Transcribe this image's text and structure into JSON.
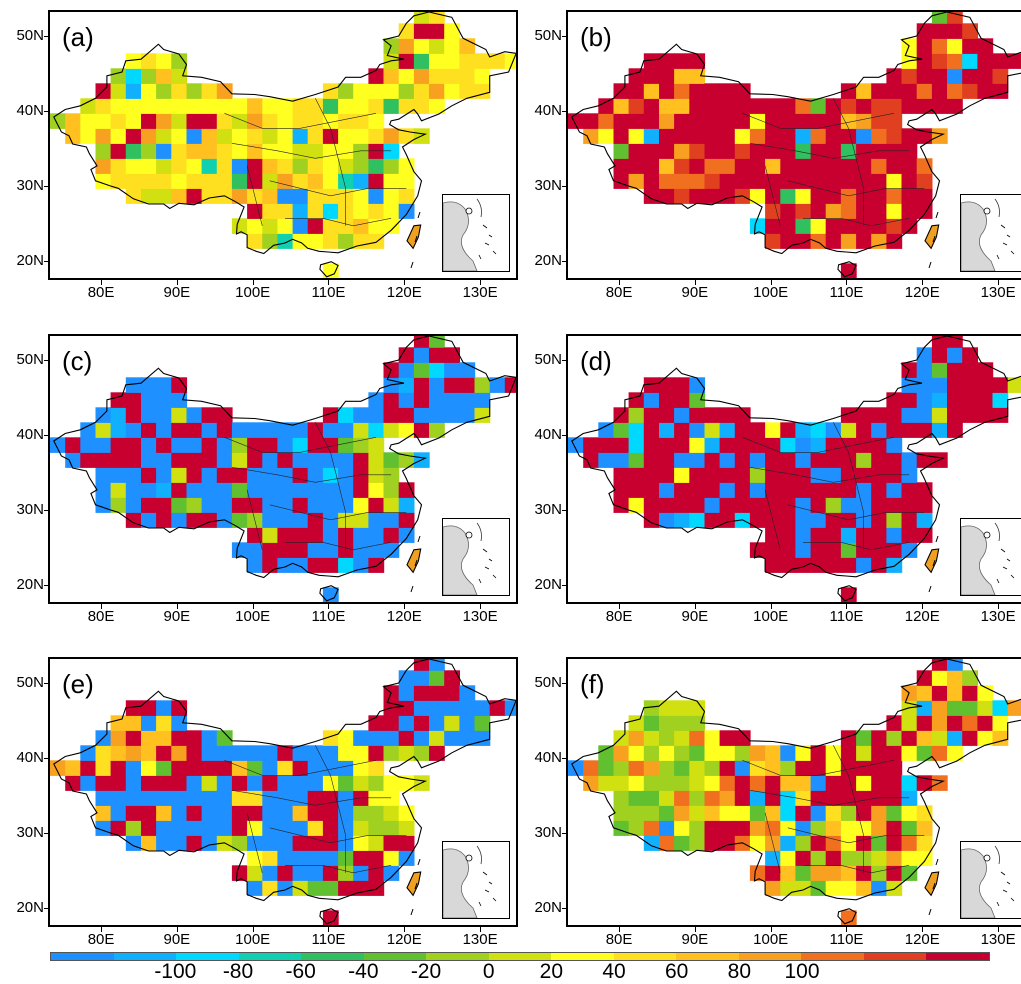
{
  "panels": [
    {
      "id": "a",
      "label": "(a)",
      "scheme": "mostly_yellow"
    },
    {
      "id": "b",
      "label": "(b)",
      "scheme": "mostly_red"
    },
    {
      "id": "c",
      "label": "(c)",
      "scheme": "blue_red_mix"
    },
    {
      "id": "d",
      "label": "(d)",
      "scheme": "mostly_red_blue_patches"
    },
    {
      "id": "e",
      "label": "(e)",
      "scheme": "blue_red_mix_green"
    },
    {
      "id": "f",
      "label": "(f)",
      "scheme": "multicolor"
    }
  ],
  "lat_labels": [
    "50N",
    "40N",
    "30N",
    "20N"
  ],
  "lon_labels": [
    "80E",
    "90E",
    "100E",
    "110E",
    "120E",
    "130E"
  ],
  "colorbar": {
    "colors": [
      "#1e90ff",
      "#10b0ff",
      "#00d8ff",
      "#10d0b0",
      "#30c060",
      "#60c030",
      "#a0d020",
      "#d0e010",
      "#ffff20",
      "#ffe020",
      "#ffc020",
      "#f8a020",
      "#f07020",
      "#e04020",
      "#c80030"
    ],
    "tick_labels": [
      "-100",
      "-80",
      "-60",
      "-40",
      "-20",
      "0",
      "20",
      "40",
      "60",
      "80",
      "100"
    ]
  }
}
